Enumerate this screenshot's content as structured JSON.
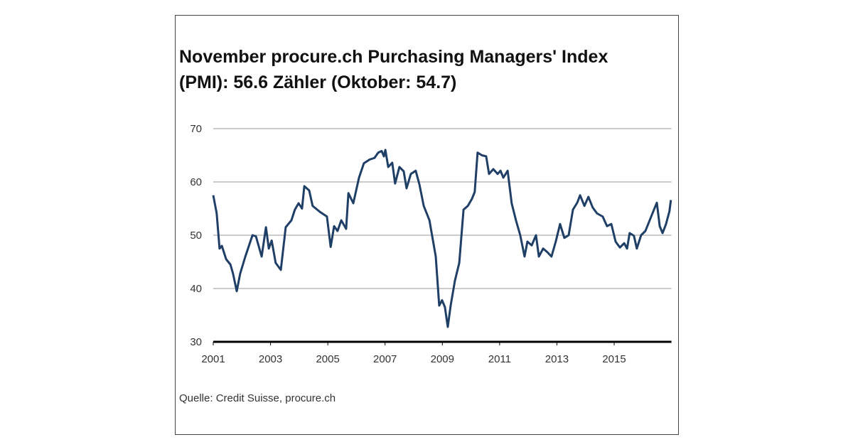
{
  "chart_data": {
    "type": "line",
    "title": [
      "November procure.ch Purchasing Managers' Index",
      "(PMI): 56.6 Zähler (Oktober: 54.7)"
    ],
    "source": "Quelle: Credit Suisse, procure.ch",
    "x": [
      2001.0,
      2001.12,
      2001.22,
      2001.3,
      2001.45,
      2001.6,
      2001.69,
      2001.82,
      2001.94,
      2002.12,
      2002.37,
      2002.49,
      2002.69,
      2002.84,
      2002.94,
      2003.04,
      2003.18,
      2003.36,
      2003.53,
      2003.73,
      2003.85,
      2003.98,
      2004.1,
      2004.18,
      2004.35,
      2004.47,
      2004.72,
      2004.97,
      2005.1,
      2005.22,
      2005.34,
      2005.47,
      2005.64,
      2005.72,
      2005.89,
      2006.09,
      2006.26,
      2006.46,
      2006.63,
      2006.76,
      2006.88,
      2006.96,
      2007.01,
      2007.11,
      2007.25,
      2007.35,
      2007.5,
      2007.65,
      2007.75,
      2007.9,
      2008.07,
      2008.2,
      2008.35,
      2008.55,
      2008.64,
      2008.77,
      2008.89,
      2008.99,
      2009.09,
      2009.19,
      2009.29,
      2009.44,
      2009.59,
      2009.74,
      2009.89,
      2010.03,
      2010.13,
      2010.23,
      2010.38,
      2010.53,
      2010.63,
      2010.78,
      2010.93,
      2011.03,
      2011.13,
      2011.28,
      2011.42,
      2011.57,
      2011.72,
      2011.87,
      2011.97,
      2012.12,
      2012.27,
      2012.37,
      2012.52,
      2012.67,
      2012.81,
      2012.96,
      2013.11,
      2013.26,
      2013.41,
      2013.56,
      2013.71,
      2013.81,
      2013.96,
      2014.1,
      2014.25,
      2014.4,
      2014.6,
      2014.75,
      2014.9,
      2015.05,
      2015.2,
      2015.35,
      2015.45,
      2015.54,
      2015.69,
      2015.79,
      2015.94,
      2016.09,
      2016.24,
      2016.39,
      2016.49,
      2016.59,
      2016.69,
      2016.81,
      2016.93,
      2016.98
    ],
    "series": [
      {
        "color": "#1f3f66",
        "values": [
          57.5,
          54.1,
          47.5,
          48,
          45.5,
          44.5,
          42.8,
          39.5,
          42.8,
          46,
          50,
          49.8,
          46,
          51.5,
          47.5,
          49,
          44.8,
          43.5,
          51.5,
          52.8,
          54.8,
          56,
          55,
          59.2,
          58.4,
          55.5,
          54.4,
          53.5,
          47.8,
          51.7,
          50.8,
          52.8,
          51.2,
          57.9,
          56,
          60.8,
          63.5,
          64.2,
          64.5,
          65.5,
          65.8,
          64.8,
          66,
          62.8,
          63.6,
          59.7,
          62.8,
          62,
          58.8,
          61.5,
          62.1,
          59.5,
          55.5,
          52.8,
          50,
          46,
          36.8,
          37.8,
          36.5,
          32.8,
          36.8,
          41.5,
          44.8,
          54.8,
          55.5,
          56.8,
          58.1,
          65.5,
          65,
          64.8,
          61.5,
          62.4,
          61.5,
          62.1,
          60.8,
          62.1,
          56,
          52.8,
          50,
          46,
          48.8,
          48.1,
          50,
          46,
          47.5,
          46.8,
          46,
          48.8,
          52.1,
          49.5,
          50,
          54.8,
          56.1,
          57.5,
          55.5,
          57.2,
          55.2,
          54.1,
          53.5,
          51.7,
          52.1,
          48.8,
          47.7,
          48.5,
          47.5,
          50.4,
          49.9,
          47.5,
          50,
          50.8,
          52.8,
          54.8,
          56.1,
          51.7,
          50.4,
          52.1,
          54.5,
          56.6
        ]
      }
    ],
    "xlim": [
      2001,
      2017
    ],
    "xticks": [
      2001,
      2003,
      2005,
      2007,
      2009,
      2011,
      2013,
      2015
    ],
    "ylim": [
      30,
      70
    ],
    "yticks": [
      30,
      40,
      50,
      60,
      70
    ],
    "grid": true
  }
}
